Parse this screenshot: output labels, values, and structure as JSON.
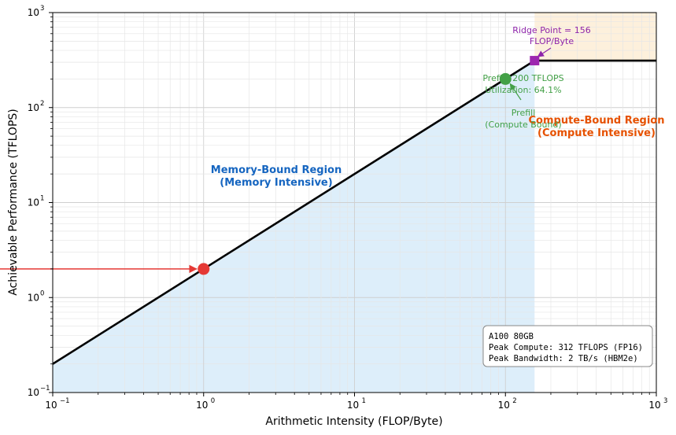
{
  "chart_data": {
    "type": "line",
    "xlabel": "Arithmetic Intensity (FLOP/Byte)",
    "ylabel": "Achievable Performance (TFLOPS)",
    "xscale": "log",
    "yscale": "log",
    "xlim": [
      0.1,
      1000
    ],
    "ylim": [
      0.1,
      1000
    ],
    "grid": true,
    "x_ticks": [
      {
        "label": "10",
        "exp": "−1"
      },
      {
        "label": "10",
        "exp": "0"
      },
      {
        "label": "10",
        "exp": "1"
      },
      {
        "label": "10",
        "exp": "2"
      },
      {
        "label": "10",
        "exp": "3"
      }
    ],
    "y_ticks": [
      {
        "label": "10",
        "exp": "−1"
      },
      {
        "label": "10",
        "exp": "0"
      },
      {
        "label": "10",
        "exp": "1"
      },
      {
        "label": "10",
        "exp": "2"
      },
      {
        "label": "10",
        "exp": "3"
      }
    ],
    "roofline": {
      "x": [
        0.1,
        156,
        1000
      ],
      "y": [
        0.2,
        312,
        312
      ],
      "color": "#000000"
    },
    "memory_region": {
      "x_range": [
        0.1,
        156
      ],
      "color": "#ddeefa"
    },
    "compute_region": {
      "x_range": [
        156,
        1000
      ],
      "y_range": [
        312,
        1000
      ],
      "color": "#fdf0dc"
    },
    "points": [
      {
        "name": "decode",
        "x": 1,
        "y": 2,
        "color": "#e53935",
        "shape": "circle"
      },
      {
        "name": "prefill",
        "x": 100,
        "y": 200,
        "color": "#43a047",
        "shape": "circle"
      },
      {
        "name": "ridge",
        "x": 156,
        "y": 312,
        "color": "#9c27b0",
        "shape": "square"
      }
    ],
    "arrow_to_decode": {
      "from_x": 0.1,
      "y": 2,
      "color": "#e53935"
    },
    "annotations": {
      "ridge_line1": "Ridge Point = 156",
      "ridge_line2": "FLOP/Byte",
      "prefill_perf_line1": "Prefill: 200 TFLOPS",
      "prefill_perf_line2": "Utilization: 64.1%",
      "prefill_label_line1": "Prefill",
      "prefill_label_line2": "(Compute Bound)",
      "memory_region_line1": "Memory-Bound Region",
      "memory_region_line2": "(Memory Intensive)",
      "compute_region_line1": "Compute-Bound Region",
      "compute_region_line2": "(Compute Intensive)"
    },
    "colors": {
      "memory_text": "#1565c0",
      "compute_text": "#e65100",
      "prefill_text": "#43a047",
      "ridge_text": "#8e24aa"
    },
    "info_box": {
      "line1": "A100 80GB",
      "line2": "Peak Compute: 312 TFLOPS (FP16)",
      "line3": "Peak Bandwidth: 2 TB/s (HBM2e)",
      "placement": "bottom-right"
    }
  }
}
